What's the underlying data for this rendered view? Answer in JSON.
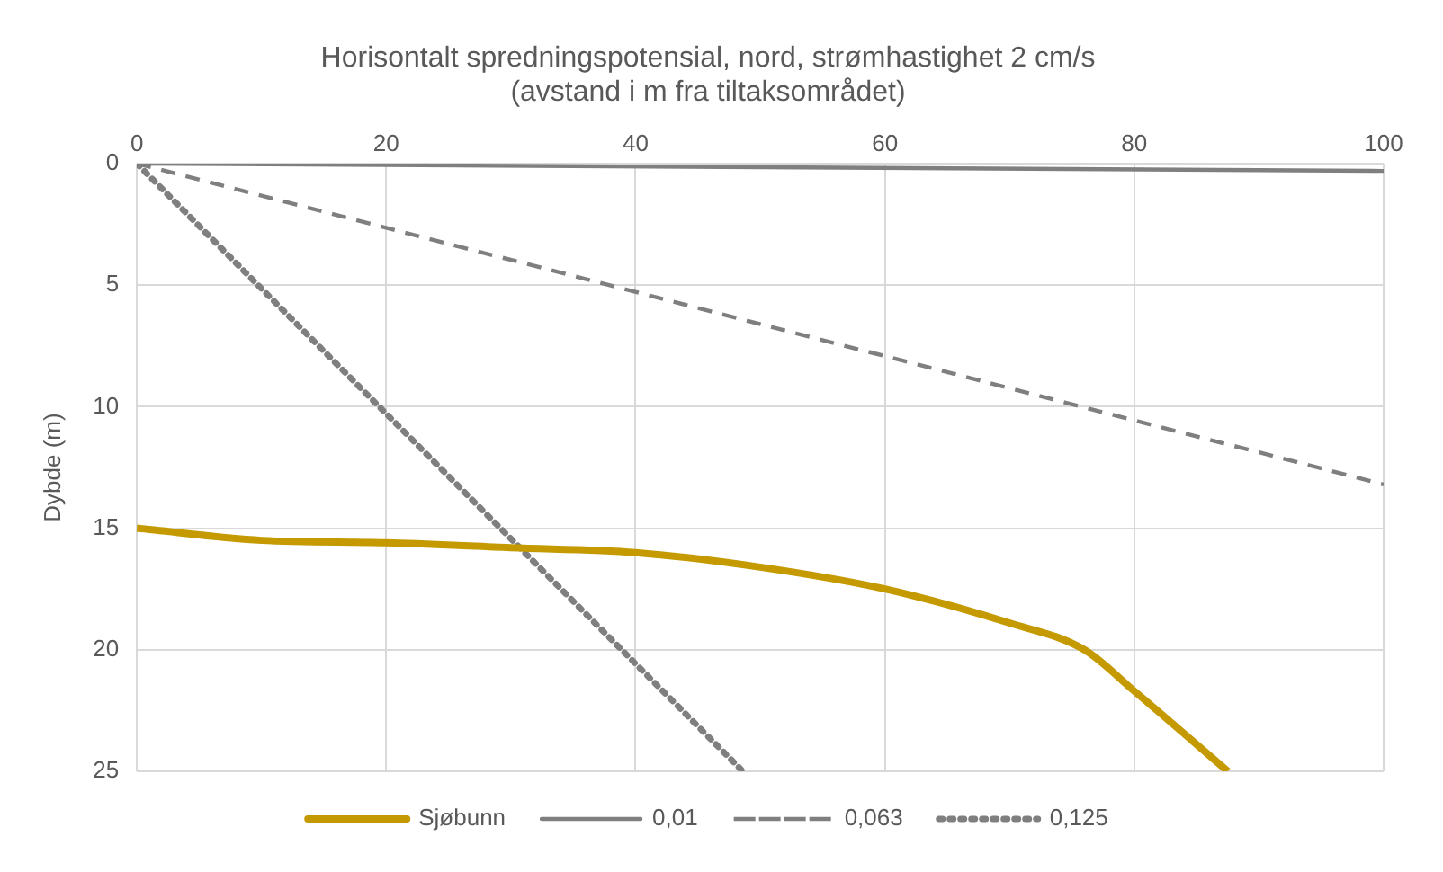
{
  "chart_data": {
    "type": "line",
    "title": [
      "Horisontalt spredningspotensial, nord, strømhastighet 2 cm/s",
      "(avstand i m fra tiltaksområdet)"
    ],
    "ylabel": "Dybde (m)",
    "xlim": [
      0,
      100
    ],
    "xticks": [
      0,
      20,
      40,
      60,
      80,
      100
    ],
    "ylim": [
      25,
      0
    ],
    "yticks": [
      0,
      5,
      10,
      15,
      20,
      25
    ],
    "grid": true,
    "legend": "bottom",
    "marker": "none",
    "series": [
      {
        "name": "Sjøbunn",
        "color": "#c49a00",
        "line_style": "solid",
        "x": [
          0,
          10,
          20,
          30,
          40,
          50,
          60,
          70,
          76,
          80,
          87.5
        ],
        "values": [
          15,
          15.5,
          15.6,
          15.8,
          16,
          16.6,
          17.5,
          18.9,
          20,
          21.7,
          25
        ]
      },
      {
        "name": "0,01",
        "color": "#7f7f7f",
        "line_style": "solid",
        "x": [
          0,
          100
        ],
        "values": [
          0,
          0.3
        ]
      },
      {
        "name": "0,063",
        "color": "#7f7f7f",
        "line_style": "dashed",
        "x": [
          0,
          100
        ],
        "values": [
          0,
          13.2
        ]
      },
      {
        "name": "0,125",
        "color": "#7f7f7f",
        "line_style": "dotted",
        "x": [
          0,
          48.6
        ],
        "values": [
          0,
          25
        ]
      }
    ]
  }
}
